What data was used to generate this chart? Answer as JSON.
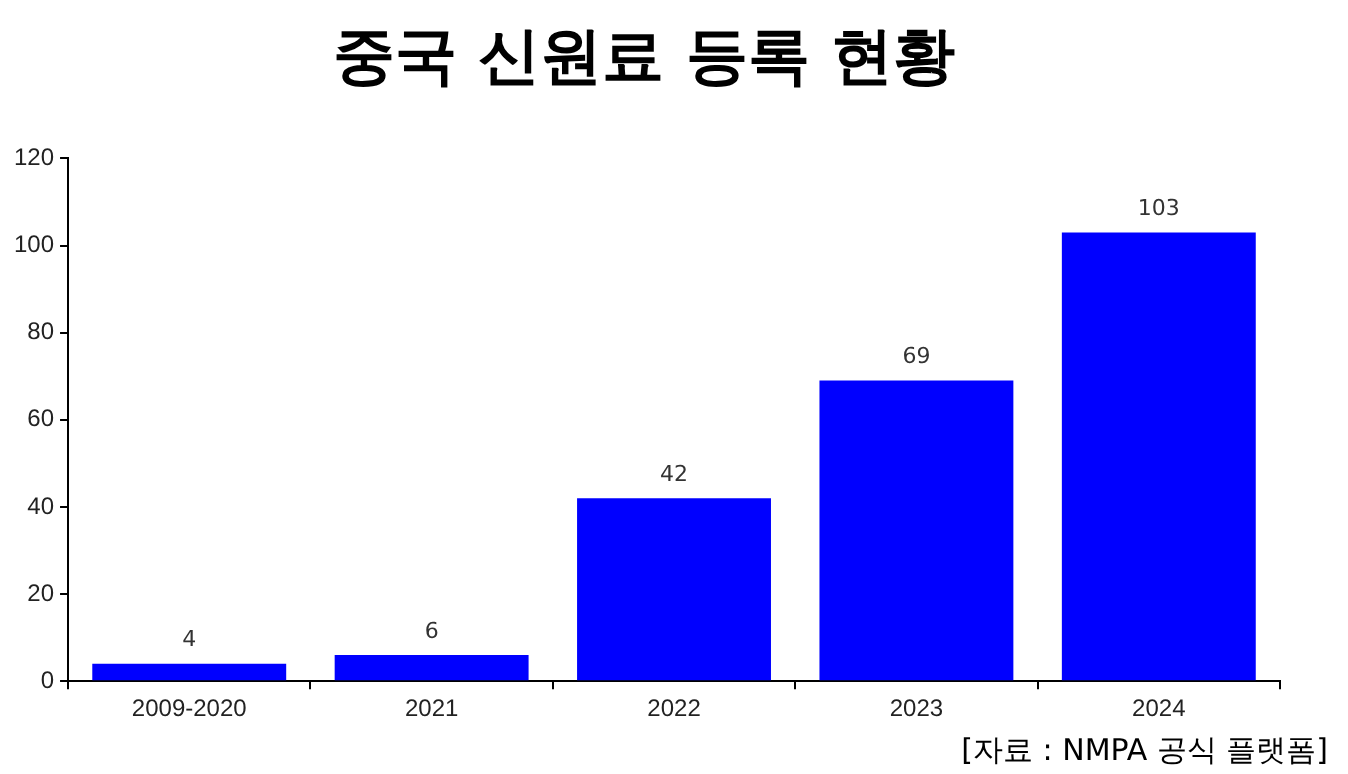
{
  "chart_data": {
    "type": "bar",
    "title": "중국 신원료 등록 현황",
    "categories": [
      "2009-2020",
      "2021",
      "2022",
      "2023",
      "2024"
    ],
    "values": [
      4,
      6,
      42,
      69,
      103
    ],
    "color": "#0000ff",
    "ylim": [
      0,
      120
    ],
    "yticks": [
      0,
      20,
      40,
      60,
      80,
      100,
      120
    ],
    "grid": false,
    "legend": false,
    "data_labels": true,
    "annotations": [
      "[자료 : NMPA 공식 플랫폼]"
    ]
  }
}
